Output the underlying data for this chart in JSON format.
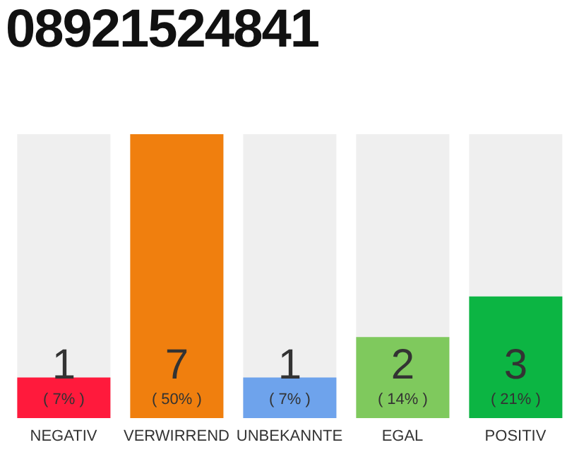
{
  "chart_data": {
    "type": "bar",
    "title": "08921524841",
    "categories": [
      "NEGATIV",
      "VERWIRREND",
      "UNBEKANNTE",
      "EGAL",
      "POSITIV"
    ],
    "values": [
      1,
      7,
      1,
      2,
      3
    ],
    "colors": [
      "#ff1a3c",
      "#f07f0e",
      "#6ea3ec",
      "#7fc95d",
      "#0cb543"
    ],
    "data_labels": true,
    "annotations": [
      "( 7% )",
      "( 50% )",
      "( 7% )",
      "( 14% )",
      "( 21% )"
    ]
  }
}
